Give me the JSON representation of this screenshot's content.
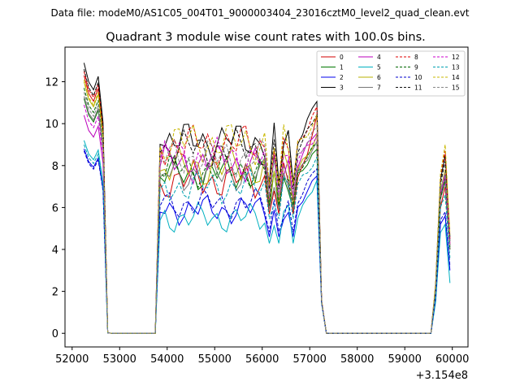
{
  "chart_data": {
    "type": "line",
    "suptitle": "Data file: modeM0/AS1C05_004T01_9000003404_23016cztM0_level2_quad_clean.evt",
    "title": "Quadrant 3 module wise count rates with 100.0s bins.",
    "xlabel": "",
    "ylabel": "",
    "x_offset_label": "+3.154e8",
    "xlim": [
      51850,
      60330
    ],
    "ylim": [
      -0.65,
      13.65
    ],
    "x_ticks": [
      52000,
      53000,
      54000,
      55000,
      56000,
      57000,
      58000,
      59000,
      60000
    ],
    "x_tick_labels": [
      "52000",
      "53000",
      "54000",
      "55000",
      "56000",
      "57000",
      "58000",
      "59000",
      "60000"
    ],
    "y_ticks": [
      0,
      2,
      4,
      6,
      8,
      10,
      12
    ],
    "y_tick_labels": [
      "0",
      "2",
      "4",
      "6",
      "8",
      "10",
      "12"
    ],
    "legend_position": "top-right",
    "segments": [
      {
        "x_start": 52250,
        "points": 6
      },
      {
        "x_start": 52850,
        "points": 10
      },
      {
        "x_start": 53850,
        "points": 34
      },
      {
        "x_start": 57250,
        "points": 3
      },
      {
        "x_start": 57550,
        "points": 21
      },
      {
        "x_start": 59650,
        "points": 4
      }
    ],
    "series": [
      {
        "name": "0",
        "color": "#d00000",
        "dashed": false,
        "mean": 7.3,
        "start": 12.3,
        "end": 10.3,
        "amp": 0.45,
        "end2": 7.8,
        "tail": [
          2.0,
          6.0,
          7.0,
          4.0
        ]
      },
      {
        "name": "1",
        "color": "#007700",
        "dashed": false,
        "mean": 7.6,
        "start": 11.2,
        "end": 8.6,
        "amp": 0.4,
        "end2": 8.1,
        "tail": [
          2.0,
          6.5,
          7.3,
          4.1
        ]
      },
      {
        "name": "2",
        "color": "#0000ee",
        "dashed": false,
        "mean": 5.9,
        "start": 8.8,
        "end": 7.6,
        "amp": 0.35,
        "end2": 7.8,
        "tail": [
          1.6,
          5.2,
          5.6,
          3.0
        ]
      },
      {
        "name": "3",
        "color": "#000000",
        "dashed": false,
        "mean": 9.2,
        "start": 12.9,
        "end": 11.2,
        "amp": 0.45,
        "end2": 8.3,
        "tail": [
          2.3,
          7.3,
          8.5,
          4.6
        ]
      },
      {
        "name": "4",
        "color": "#bb00bb",
        "dashed": false,
        "mean": 8.1,
        "start": 10.4,
        "end": 9.6,
        "amp": 0.45,
        "end2": 8.5,
        "tail": [
          2.1,
          6.6,
          7.6,
          4.3
        ]
      },
      {
        "name": "5",
        "color": "#00b0c0",
        "dashed": false,
        "mean": 5.5,
        "start": 9.2,
        "end": 7.4,
        "amp": 0.35,
        "end2": 7.5,
        "tail": [
          1.5,
          4.8,
          5.2,
          2.4
        ]
      },
      {
        "name": "6",
        "color": "#b8b000",
        "dashed": false,
        "mean": 7.9,
        "start": 12.0,
        "end": 9.3,
        "amp": 0.45,
        "end2": 8.1,
        "tail": [
          2.2,
          6.8,
          7.8,
          4.2
        ]
      },
      {
        "name": "7",
        "color": "#777777",
        "dashed": false,
        "mean": 7.6,
        "start": 11.3,
        "end": 9.0,
        "amp": 0.4,
        "end2": 7.8,
        "tail": [
          2.1,
          6.4,
          7.2,
          4.0
        ]
      },
      {
        "name": "8",
        "color": "#e00000",
        "dashed": true,
        "mean": 9.0,
        "start": 12.5,
        "end": 10.8,
        "amp": 0.5,
        "end2": 8.6,
        "tail": [
          2.4,
          7.5,
          8.7,
          4.5
        ]
      },
      {
        "name": "9",
        "color": "#006600",
        "dashed": true,
        "mean": 7.8,
        "start": 11.7,
        "end": 9.0,
        "amp": 0.4,
        "end2": 8.0,
        "tail": [
          2.0,
          6.4,
          7.4,
          4.0
        ]
      },
      {
        "name": "10",
        "color": "#0000cc",
        "dashed": true,
        "mean": 6.2,
        "start": 8.7,
        "end": 8.0,
        "amp": 0.35,
        "end2": 7.7,
        "tail": [
          1.7,
          5.4,
          5.8,
          3.2
        ]
      },
      {
        "name": "11",
        "color": "#111111",
        "dashed": true,
        "mean": 8.8,
        "start": 12.6,
        "end": 10.6,
        "amp": 0.45,
        "end2": 8.4,
        "tail": [
          2.3,
          7.1,
          8.2,
          4.4
        ]
      },
      {
        "name": "12",
        "color": "#cc00cc",
        "dashed": true,
        "mean": 8.4,
        "start": 10.9,
        "end": 9.3,
        "amp": 0.45,
        "end2": 8.3,
        "tail": [
          2.1,
          6.7,
          7.5,
          4.2
        ]
      },
      {
        "name": "13",
        "color": "#00a0b0",
        "dashed": true,
        "mean": 7.0,
        "start": 9.0,
        "end": 8.4,
        "amp": 0.4,
        "end2": 7.9,
        "tail": [
          1.9,
          6.0,
          6.6,
          3.6
        ]
      },
      {
        "name": "14",
        "color": "#c8b800",
        "dashed": true,
        "mean": 9.1,
        "start": 12.1,
        "end": 10.2,
        "amp": 0.5,
        "end2": 8.6,
        "tail": [
          2.4,
          7.6,
          9.0,
          4.7
        ]
      },
      {
        "name": "15",
        "color": "#888888",
        "dashed": true,
        "mean": 8.4,
        "start": 11.5,
        "end": 9.7,
        "amp": 0.45,
        "end2": 8.2,
        "tail": [
          2.1,
          6.8,
          7.7,
          4.2
        ]
      }
    ]
  }
}
